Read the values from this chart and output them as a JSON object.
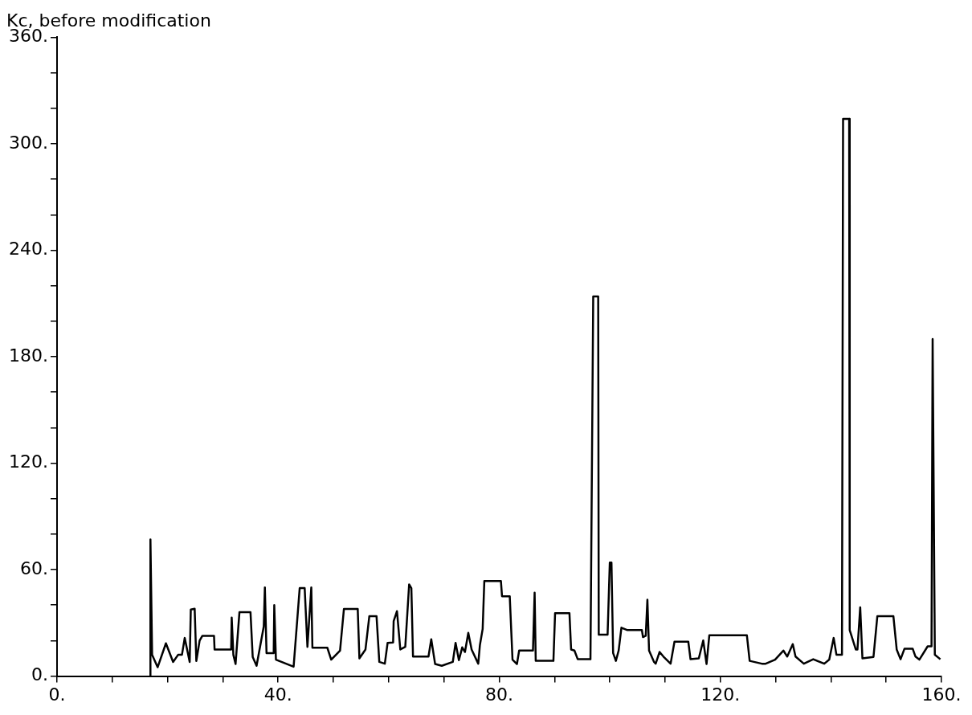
{
  "chart_data": {
    "type": "line",
    "title": "Kc, before modification",
    "x": [
      16.9,
      16.9,
      17.2,
      18.2,
      19.7,
      21,
      21.9,
      22.6,
      23.1,
      24,
      24.2,
      24.9,
      25.2,
      25.8,
      26.3,
      28.4,
      28.5,
      31.5,
      31.6,
      31.9,
      32.3,
      33,
      35,
      35.4,
      36.1,
      37.4,
      37.6,
      37.9,
      39.2,
      39.3,
      39.6,
      42.8,
      43.9,
      44.8,
      45.3,
      46,
      46.2,
      48.9,
      49.6,
      51.2,
      51.9,
      54.4,
      54.7,
      55.8,
      56.5,
      57.8,
      58.3,
      59.3,
      59.8,
      60.8,
      60.9,
      61.5,
      62.1,
      63,
      63.7,
      64.1,
      64.4,
      67.2,
      67.7,
      68.4,
      69.6,
      71.6,
      72.1,
      72.7,
      73.3,
      73.8,
      74.4,
      75,
      76.2,
      76.5,
      77,
      77.3,
      80.3,
      80.5,
      81.9,
      82.4,
      83.2,
      83.6,
      86.1,
      86.4,
      86.6,
      89.8,
      90.1,
      92.7,
      93,
      93.6,
      94.2,
      96.5,
      97,
      97.9,
      98,
      99.6,
      100,
      100.3,
      100.6,
      101.1,
      101.6,
      102.1,
      103.1,
      105.8,
      106,
      106.5,
      106.8,
      107.1,
      108,
      108.3,
      109,
      109.7,
      111,
      111.7,
      114.2,
      114.6,
      116.1,
      116.9,
      117.5,
      118,
      124.8,
      125.3,
      127.5,
      128.2,
      129.9,
      131.4,
      132.1,
      133.1,
      133.6,
      135.1,
      136.8,
      138.8,
      139.7,
      140.5,
      141,
      142,
      142.2,
      143.3,
      143.4,
      144.5,
      144.8,
      145.3,
      145.7,
      147.7,
      148.4,
      151.3,
      151.9,
      152.6,
      153.3,
      154.8,
      155.3,
      156,
      157.5,
      158.2,
      158.4,
      158.8,
      159.8
    ],
    "values": [
      0,
      77,
      12,
      5,
      18.5,
      8,
      12,
      12,
      21.5,
      8,
      37.5,
      38,
      8.5,
      20,
      22.7,
      22.7,
      15,
      15,
      33,
      12,
      6.8,
      36,
      36,
      10.8,
      5.8,
      28,
      50,
      13,
      13,
      40,
      9.3,
      5.3,
      49.6,
      49.6,
      16.5,
      50,
      16,
      16,
      9.3,
      14.4,
      37.8,
      37.8,
      10,
      15,
      33.8,
      33.8,
      8,
      7,
      18.7,
      19,
      31,
      36.6,
      15,
      16.5,
      51.7,
      49.6,
      11,
      11,
      20.8,
      6.8,
      5.8,
      8,
      18.7,
      9,
      16.2,
      13.6,
      24.4,
      15,
      7,
      17.4,
      26.6,
      53.6,
      53.6,
      45,
      45,
      9.3,
      6.8,
      14.4,
      14.4,
      47,
      8.6,
      8.6,
      35.5,
      35.5,
      15,
      14.4,
      9.5,
      9.5,
      214,
      214,
      23.4,
      23.4,
      64,
      64,
      13,
      8.6,
      14.4,
      27.3,
      26,
      26,
      22,
      22.7,
      43,
      14.4,
      8,
      7,
      13.6,
      11,
      7,
      19.4,
      19.4,
      9.5,
      10,
      20.1,
      6.8,
      23,
      23,
      8.6,
      7,
      7,
      9.3,
      14.4,
      11,
      18,
      11,
      7,
      9.5,
      7,
      9.3,
      21.5,
      12,
      12,
      314,
      314,
      25.9,
      15,
      15,
      38.8,
      10,
      10.8,
      33.8,
      33.8,
      15,
      9.5,
      15.4,
      15.4,
      11,
      9.3,
      16.8,
      16.8,
      190,
      12,
      9.5
    ],
    "color": "#000000",
    "marker": "none",
    "legend": false,
    "grid": false,
    "xlim": [
      0,
      160
    ],
    "xticks": [
      {
        "value": 0,
        "label": "0."
      },
      {
        "value": 10,
        "label": null
      },
      {
        "value": 20,
        "label": null
      },
      {
        "value": 30,
        "label": null
      },
      {
        "value": 40,
        "label": "40."
      },
      {
        "value": 50,
        "label": null
      },
      {
        "value": 60,
        "label": null
      },
      {
        "value": 70,
        "label": null
      },
      {
        "value": 80,
        "label": "80."
      },
      {
        "value": 90,
        "label": null
      },
      {
        "value": 100,
        "label": null
      },
      {
        "value": 110,
        "label": null
      },
      {
        "value": 120,
        "label": "120."
      },
      {
        "value": 130,
        "label": null
      },
      {
        "value": 140,
        "label": null
      },
      {
        "value": 150,
        "label": null
      },
      {
        "value": 160,
        "label": "160."
      }
    ],
    "ylim": [
      0,
      360
    ],
    "yticks": [
      {
        "value": 0,
        "label": "0."
      },
      {
        "value": 20,
        "label": null
      },
      {
        "value": 40,
        "label": null
      },
      {
        "value": 60,
        "label": "60."
      },
      {
        "value": 80,
        "label": null
      },
      {
        "value": 100,
        "label": null
      },
      {
        "value": 120,
        "label": "120."
      },
      {
        "value": 140,
        "label": null
      },
      {
        "value": 160,
        "label": null
      },
      {
        "value": 180,
        "label": "180."
      },
      {
        "value": 200,
        "label": null
      },
      {
        "value": 220,
        "label": null
      },
      {
        "value": 240,
        "label": "240."
      },
      {
        "value": 260,
        "label": null
      },
      {
        "value": 280,
        "label": null
      },
      {
        "value": 300,
        "label": "300."
      },
      {
        "value": 320,
        "label": null
      },
      {
        "value": 340,
        "label": null
      },
      {
        "value": 360,
        "label": "360."
      }
    ]
  }
}
